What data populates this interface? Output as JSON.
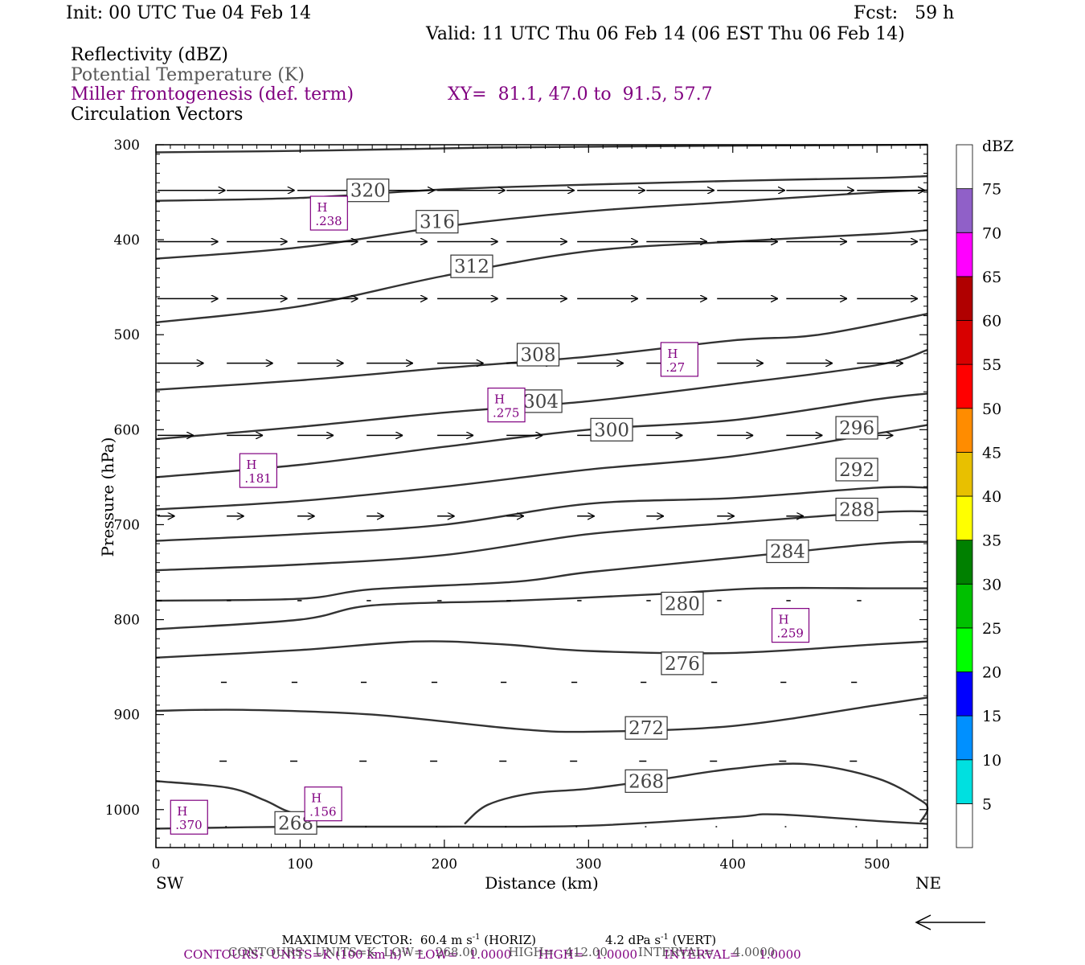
{
  "header": {
    "init": "Init: 00 UTC Tue 04 Feb 14",
    "fcst": "Fcst:   59 h",
    "valid": "Valid: 11 UTC Thu 06 Feb 14 (06 EST Thu 06 Feb 14)"
  },
  "legend": {
    "reflectivity": "Reflectivity (dBZ)",
    "theta": "Potential Temperature (K)",
    "miller": "Miller frontogenesis (def. term)",
    "xy": "XY=  81.1, 47.0 to  91.5, 57.7",
    "vectors": "Circulation Vectors"
  },
  "footer": {
    "max_vector_label": "MAXIMUM VECTOR:  60.4 m s",
    "max_vector_horiz": " (HORIZ)",
    "max_vector_vert_value": "4.2 dPa s",
    "max_vector_vert": " (VERT)",
    "exp": "-1",
    "contours1_a": "CONTOURS:  UNITS=K (100 km h)",
    "contours1_b": "  LOW=   1.0000       HIGH=   1.0000       INTERVAL=     1.0000",
    "contours2": "CONTOURS:  UNITS=K  LOW=   268.00        HIGH=   412.00        INTERVAL=     4.0000"
  },
  "chart_data": {
    "type": "cross-section",
    "xlabel": "Distance (km)",
    "ylabel": "Pressure (hPa)",
    "xlim": [
      0,
      535
    ],
    "ylim": [
      1040,
      300
    ],
    "x_ticks": [
      0,
      100,
      200,
      300,
      400,
      500
    ],
    "y_ticks": [
      300,
      400,
      500,
      600,
      700,
      800,
      900,
      1000
    ],
    "x_end_labels": {
      "left": "SW",
      "right": "NE"
    },
    "theta_contours": [
      {
        "x": [
          0,
          120,
          230,
          400,
          535
        ],
        "p": [
          308,
          306,
          303,
          301,
          300
        ]
      },
      {
        "x": [
          0,
          100,
          200,
          300,
          400,
          500,
          535
        ],
        "p": [
          359,
          356,
          347,
          342,
          338,
          335,
          333
        ]
      },
      {
        "x": [
          0,
          100,
          200,
          300,
          400,
          500,
          535
        ],
        "p": [
          420,
          408,
          386,
          370,
          360,
          350,
          348
        ]
      },
      {
        "x": [
          0,
          100,
          200,
          300,
          400,
          500,
          535
        ],
        "p": [
          487,
          470,
          438,
          412,
          402,
          394,
          390
        ]
      },
      {
        "x": [
          0,
          100,
          200,
          300,
          400,
          460,
          535
        ],
        "p": [
          558,
          548,
          535,
          523,
          506,
          500,
          478
        ]
      },
      {
        "x": [
          0,
          100,
          200,
          300,
          400,
          500,
          535
        ],
        "p": [
          610,
          597,
          582,
          570,
          552,
          532,
          516
        ]
      },
      {
        "x": [
          0,
          100,
          200,
          300,
          400,
          500,
          535
        ],
        "p": [
          650,
          637,
          618,
          600,
          590,
          568,
          562
        ]
      },
      {
        "x": [
          0,
          100,
          200,
          300,
          400,
          500,
          535
        ],
        "p": [
          684,
          675,
          660,
          642,
          628,
          604,
          595
        ]
      },
      {
        "x": [
          0,
          100,
          200,
          300,
          400,
          500,
          535
        ],
        "p": [
          717,
          710,
          700,
          678,
          672,
          661,
          661
        ]
      },
      {
        "x": [
          0,
          100,
          200,
          300,
          400,
          500,
          535
        ],
        "p": [
          748,
          742,
          732,
          710,
          698,
          687,
          686
        ]
      },
      {
        "x": [
          0,
          100,
          150,
          250,
          300,
          400,
          500,
          535
        ],
        "p": [
          780,
          778,
          768,
          760,
          750,
          735,
          720,
          718
        ]
      },
      {
        "x": [
          0,
          100,
          150,
          250,
          350,
          420,
          500,
          535
        ],
        "p": [
          810,
          800,
          785,
          780,
          773,
          767,
          767,
          767
        ]
      },
      {
        "x": [
          0,
          100,
          180,
          240,
          300,
          400,
          500,
          535
        ],
        "p": [
          840,
          832,
          823,
          826,
          833,
          835,
          826,
          823
        ]
      },
      {
        "x": [
          0,
          60,
          150,
          250,
          300,
          400,
          500,
          535
        ],
        "p": [
          896,
          895,
          900,
          915,
          918,
          912,
          890,
          882
        ]
      },
      {
        "x": [
          0,
          50,
          75,
          90,
          105
        ],
        "p": [
          970,
          977,
          990,
          1001,
          1008
        ]
      },
      {
        "x": [
          214,
          230,
          260,
          300,
          350,
          400,
          450,
          500,
          530,
          535,
          530
        ],
        "p": [
          1015,
          995,
          983,
          978,
          968,
          957,
          952,
          967,
          990,
          1000,
          1013
        ]
      },
      {
        "x": [
          0,
          100,
          200,
          300,
          400,
          430,
          500,
          535
        ],
        "p": [
          1020,
          1018,
          1018,
          1017,
          1008,
          1005,
          1012,
          1015
        ]
      }
    ],
    "theta_labels": [
      {
        "text": "320",
        "x": 147,
        "p": 348
      },
      {
        "text": "316",
        "x": 195,
        "p": 381
      },
      {
        "text": "312",
        "x": 219,
        "p": 428
      },
      {
        "text": "308",
        "x": 265,
        "p": 521
      },
      {
        "text": "304",
        "x": 267,
        "p": 570
      },
      {
        "text": "300",
        "x": 316,
        "p": 600
      },
      {
        "text": "296",
        "x": 486,
        "p": 598
      },
      {
        "text": "292",
        "x": 486,
        "p": 642
      },
      {
        "text": "288",
        "x": 486,
        "p": 684
      },
      {
        "text": "284",
        "x": 438,
        "p": 728
      },
      {
        "text": "280",
        "x": 365,
        "p": 783
      },
      {
        "text": "276",
        "x": 365,
        "p": 846
      },
      {
        "text": "272",
        "x": 340,
        "p": 914
      },
      {
        "text": "268",
        "x": 340,
        "p": 970
      },
      {
        "text": "268",
        "x": 97,
        "p": 1014
      }
    ],
    "frontogenesis_maxima": [
      {
        "label": "H",
        "value": ".238",
        "x": 120,
        "p": 372
      },
      {
        "label": "H",
        "value": ".27",
        "x": 363,
        "p": 526
      },
      {
        "label": "H",
        "value": ".275",
        "x": 243,
        "p": 574
      },
      {
        "label": "H",
        "value": ".181",
        "x": 71,
        "p": 643
      },
      {
        "label": "H",
        "value": ".259",
        "x": 440,
        "p": 806
      },
      {
        "label": "H",
        "value": ".156",
        "x": 116,
        "p": 994
      },
      {
        "label": "H",
        "value": ".370",
        "x": 23,
        "p": 1008
      }
    ],
    "vector_rows": [
      {
        "p": 348,
        "xs": [
          0,
          48,
          97,
          145,
          194,
          242,
          291,
          339,
          388,
          436,
          485
        ],
        "u": 47,
        "w": 0
      },
      {
        "p": 402,
        "xs": [
          0,
          48,
          97,
          145,
          194,
          242,
          291,
          339,
          388,
          436,
          485
        ],
        "u": 42,
        "w": 0
      },
      {
        "p": 462,
        "xs": [
          0,
          48,
          97,
          145,
          194,
          242,
          291,
          339,
          388,
          436,
          485
        ],
        "u": 42,
        "w": 0
      },
      {
        "p": 530,
        "xs": [
          0,
          48,
          97,
          145,
          194,
          242,
          291,
          339,
          388,
          436,
          485
        ],
        "u": 32,
        "w": 0
      },
      {
        "p": 606,
        "xs": [
          0,
          48,
          97,
          145,
          194,
          242,
          291,
          339,
          388,
          436,
          485
        ],
        "u": 25,
        "w": 0
      },
      {
        "p": 691,
        "xs": [
          0,
          48,
          97,
          145,
          194,
          242,
          291,
          339,
          388,
          436,
          485
        ],
        "u": 12,
        "w": 0
      },
      {
        "p": 780,
        "xs": [
          0,
          48,
          97,
          145,
          194,
          242,
          291,
          339,
          388,
          436,
          485
        ],
        "u": 3,
        "w": 0
      },
      {
        "p": 866,
        "xs": [
          48,
          97,
          145,
          194,
          242,
          291,
          339,
          388,
          436,
          485
        ],
        "u": -4,
        "w": 0
      },
      {
        "p": 949,
        "xs": [
          48,
          97,
          145,
          194,
          242,
          291,
          339,
          388,
          436,
          485
        ],
        "u": -5,
        "w": 0
      },
      {
        "p": 1018,
        "xs": [
          48,
          97,
          145,
          194,
          242,
          291,
          339,
          388,
          436,
          485
        ],
        "u": -1,
        "w": 0
      }
    ],
    "colorbar": {
      "units": "dBZ",
      "levels": [
        5,
        10,
        15,
        20,
        25,
        30,
        35,
        40,
        45,
        50,
        55,
        60,
        65,
        70,
        75
      ],
      "colors": [
        "#ffffff",
        "#00e0e0",
        "#0090ff",
        "#0000ff",
        "#00ff00",
        "#00c000",
        "#008000",
        "#ffff00",
        "#e8c000",
        "#ff8c00",
        "#ff0000",
        "#d80000",
        "#b00000",
        "#ff00ff",
        "#9060c8",
        "#ffffff"
      ]
    }
  }
}
